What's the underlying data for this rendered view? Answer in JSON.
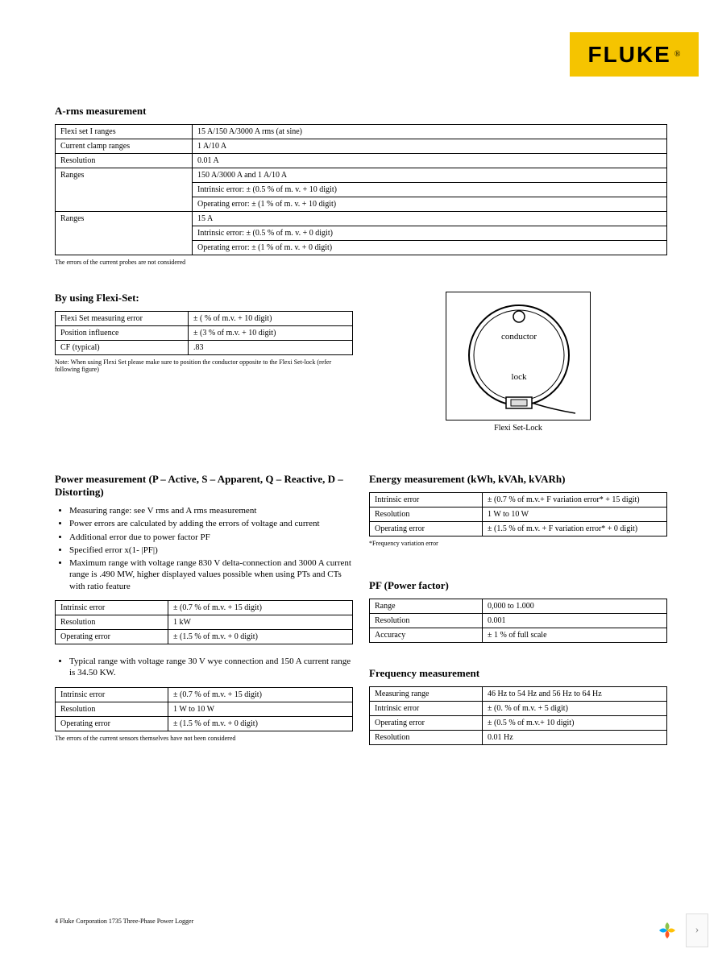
{
  "logo": {
    "text": "FLUKE",
    "reg": "®",
    "bg": "#f5c400"
  },
  "arms": {
    "title": "A-rms measurement",
    "rows": [
      {
        "k": "Flexi set I ranges",
        "v": [
          "15 A/150 A/3000 A rms (at sine)"
        ]
      },
      {
        "k": "Current clamp ranges",
        "v": [
          "1 A/10 A"
        ]
      },
      {
        "k": "Resolution",
        "v": [
          "0.01 A"
        ]
      },
      {
        "k": "Ranges",
        "v": [
          "150 A/3000 A and 1 A/10 A",
          "Intrinsic error: ± (0.5 % of m. v. + 10 digit)",
          "Operating error: ± (1 % of m. v. + 10 digit)"
        ]
      },
      {
        "k": "Ranges",
        "v": [
          "15 A",
          "Intrinsic error: ± (0.5 % of m. v. + 0 digit)",
          "Operating error: ± (1 % of m. v. + 0 digit)"
        ]
      }
    ],
    "footnote": "The errors of the current probes are not considered"
  },
  "flexiset": {
    "title": "By using Flexi-Set:",
    "rows": [
      {
        "k": "Flexi Set measuring error",
        "v": "± ( % of m.v. + 10 digit)"
      },
      {
        "k": "Position influence",
        "v": "± (3 % of m.v. + 10 digit)"
      },
      {
        "k": "CF (typical)",
        "v": ".83"
      }
    ],
    "note": "Note: When using Flexi Set please make sure to position the conductor opposite to the Flexi Set-lock (refer following figure)",
    "diagram": {
      "conductor": "conductor",
      "lock": "lock",
      "caption": "Flexi Set-Lock"
    }
  },
  "power": {
    "title": "Power measurement (P – Active, S – Apparent, Q – Reactive, D – Distorting)",
    "bullets": [
      "Measuring range: see V rms and A rms measurement",
      "Power errors are calculated by adding the errors of voltage and current",
      "Additional error due to power factor PF",
      "Specified error x(1-        |PF|)",
      "Maximum range with voltage range 830 V delta-connection and 3000 A current range is .490 MW, higher displayed values possible when using PTs and CTs with ratio feature"
    ],
    "t1": [
      {
        "k": "Intrinsic error",
        "v": "± (0.7 % of m.v. + 15 digit)"
      },
      {
        "k": "Resolution",
        "v": "1 kW"
      },
      {
        "k": "Operating error",
        "v": "± (1.5 % of m.v. + 0 digit)"
      }
    ],
    "bullet2": "Typical range with voltage range 30 V wye connection and 150 A current range is 34.50 KW.",
    "t2": [
      {
        "k": "Intrinsic error",
        "v": "± (0.7 % of m.v. + 15 digit)"
      },
      {
        "k": "Resolution",
        "v": "1 W to 10 W"
      },
      {
        "k": "Operating error",
        "v": "± (1.5 % of m.v. + 0 digit)"
      }
    ],
    "footnote": "The errors of the current sensors themselves have not been considered"
  },
  "energy": {
    "title": "Energy measurement (kWh, kVAh, kVARh)",
    "rows": [
      {
        "k": "Intrinsic error",
        "v": "± (0.7 % of m.v.+ F variation error* + 15 digit)"
      },
      {
        "k": "Resolution",
        "v": "1 W to 10 W"
      },
      {
        "k": "Operating error",
        "v": "± (1.5 % of m.v. + F variation error* + 0 digit)"
      }
    ],
    "footnote": "*Frequency variation error"
  },
  "pf": {
    "title": "PF (Power factor)",
    "rows": [
      {
        "k": "Range",
        "v": "0,000 to 1.000"
      },
      {
        "k": "Resolution",
        "v": "0.001"
      },
      {
        "k": "Accuracy",
        "v": "± 1 % of full scale"
      }
    ]
  },
  "freq": {
    "title": "Frequency measurement",
    "rows": [
      {
        "k": "Measuring range",
        "v": "46 Hz to 54 Hz and 56 Hz to 64 Hz"
      },
      {
        "k": "Intrinsic error",
        "v": "± (0. % of m.v. + 5 digit)"
      },
      {
        "k": "Operating error",
        "v": "± (0.5 % of m.v.+ 10 digit)"
      },
      {
        "k": "Resolution",
        "v": "0.01 Hz"
      }
    ]
  },
  "footer": "4  Fluke Corporation   1735 Three-Phase Power Logger"
}
